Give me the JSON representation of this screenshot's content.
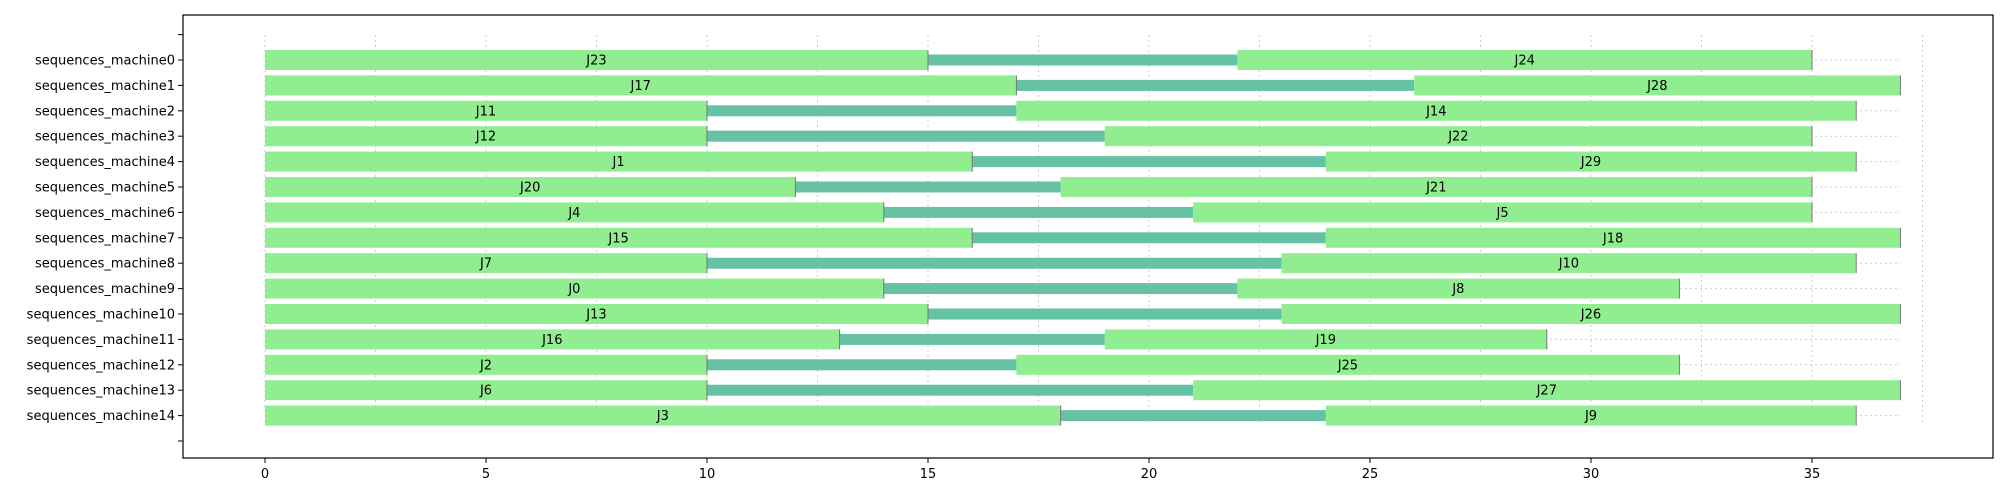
{
  "chart_data": {
    "type": "gantt",
    "title": "",
    "xlabel": "",
    "ylabel": "",
    "xlim": [
      -2,
      39.5
    ],
    "x_ticks": [
      0,
      5,
      10,
      15,
      20,
      25,
      30,
      35
    ],
    "grid": true,
    "legend": "none",
    "colors": {
      "job": "#90EE90",
      "gap": "#66C2A5",
      "job_edge": "#777777",
      "grid": "#cccccc"
    },
    "rows": [
      {
        "label": "sequences_machine0",
        "jobs": [
          {
            "name": "J23",
            "start": 0,
            "end": 15
          },
          {
            "name": "J24",
            "start": 22,
            "end": 35
          }
        ]
      },
      {
        "label": "sequences_machine1",
        "jobs": [
          {
            "name": "J17",
            "start": 0,
            "end": 17
          },
          {
            "name": "J28",
            "start": 26,
            "end": 37
          }
        ]
      },
      {
        "label": "sequences_machine2",
        "jobs": [
          {
            "name": "J11",
            "start": 0,
            "end": 10
          },
          {
            "name": "J14",
            "start": 17,
            "end": 36
          }
        ]
      },
      {
        "label": "sequences_machine3",
        "jobs": [
          {
            "name": "J12",
            "start": 0,
            "end": 10
          },
          {
            "name": "J22",
            "start": 19,
            "end": 35
          }
        ]
      },
      {
        "label": "sequences_machine4",
        "jobs": [
          {
            "name": "J1",
            "start": 0,
            "end": 16
          },
          {
            "name": "J29",
            "start": 24,
            "end": 36
          }
        ]
      },
      {
        "label": "sequences_machine5",
        "jobs": [
          {
            "name": "J20",
            "start": 0,
            "end": 12
          },
          {
            "name": "J21",
            "start": 18,
            "end": 35
          }
        ]
      },
      {
        "label": "sequences_machine6",
        "jobs": [
          {
            "name": "J4",
            "start": 0,
            "end": 14
          },
          {
            "name": "J5",
            "start": 21,
            "end": 35
          }
        ]
      },
      {
        "label": "sequences_machine7",
        "jobs": [
          {
            "name": "J15",
            "start": 0,
            "end": 16
          },
          {
            "name": "J18",
            "start": 24,
            "end": 37
          }
        ]
      },
      {
        "label": "sequences_machine8",
        "jobs": [
          {
            "name": "J7",
            "start": 0,
            "end": 10
          },
          {
            "name": "J10",
            "start": 23,
            "end": 36
          }
        ]
      },
      {
        "label": "sequences_machine9",
        "jobs": [
          {
            "name": "J0",
            "start": 0,
            "end": 14
          },
          {
            "name": "J8",
            "start": 22,
            "end": 32
          }
        ]
      },
      {
        "label": "sequences_machine10",
        "jobs": [
          {
            "name": "J13",
            "start": 0,
            "end": 15
          },
          {
            "name": "J26",
            "start": 23,
            "end": 37
          }
        ]
      },
      {
        "label": "sequences_machine11",
        "jobs": [
          {
            "name": "J16",
            "start": 0,
            "end": 13
          },
          {
            "name": "J19",
            "start": 19,
            "end": 29
          }
        ]
      },
      {
        "label": "sequences_machine12",
        "jobs": [
          {
            "name": "J2",
            "start": 0,
            "end": 10
          },
          {
            "name": "J25",
            "start": 17,
            "end": 32
          }
        ]
      },
      {
        "label": "sequences_machine13",
        "jobs": [
          {
            "name": "J6",
            "start": 0,
            "end": 10
          },
          {
            "name": "J27",
            "start": 21,
            "end": 37
          }
        ]
      },
      {
        "label": "sequences_machine14",
        "jobs": [
          {
            "name": "J3",
            "start": 0,
            "end": 18
          },
          {
            "name": "J9",
            "start": 24,
            "end": 36
          }
        ]
      }
    ]
  }
}
